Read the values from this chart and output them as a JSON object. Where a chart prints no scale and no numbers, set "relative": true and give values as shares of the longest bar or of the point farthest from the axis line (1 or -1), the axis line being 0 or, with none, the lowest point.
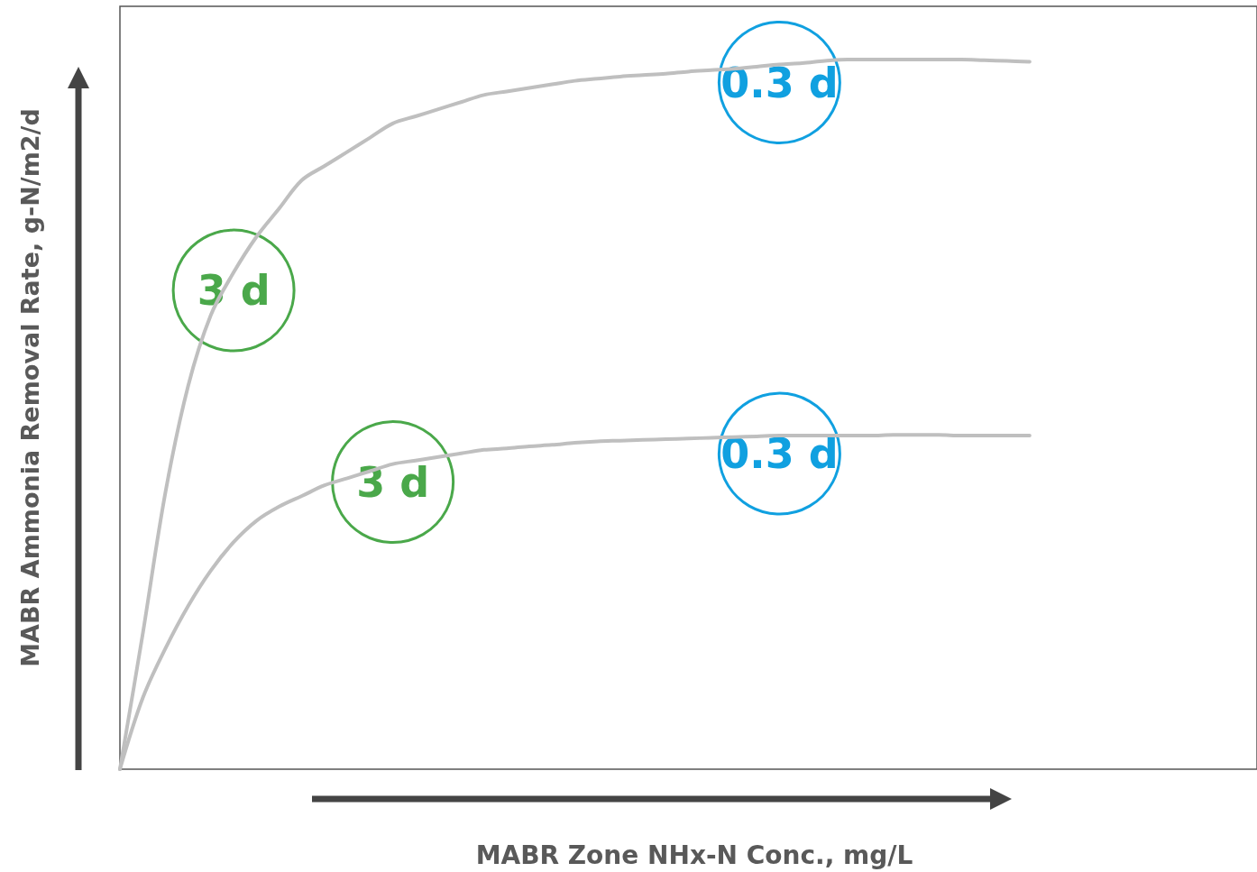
{
  "chart_data": {
    "type": "line",
    "relative": true,
    "xlabel": "MABR Zone NHx-N Conc., mg/L",
    "ylabel": "MABR Ammonia Removal Rate, g-N/m2/d",
    "marker": "none",
    "line_style": "solid",
    "categories": [
      null,
      null,
      null,
      null,
      null,
      null,
      null,
      null,
      null,
      null,
      null,
      null,
      null,
      null,
      null,
      null,
      null,
      null,
      null,
      null,
      null,
      null,
      null,
      null,
      null,
      null,
      null,
      null,
      null,
      null,
      null,
      null,
      null,
      null,
      null,
      null,
      null,
      null,
      null,
      null,
      null,
      null,
      null,
      null,
      null,
      null,
      null,
      null,
      null,
      null,
      null
    ],
    "series": [
      {
        "color": "#bfbfbf",
        "values": [
          0,
          0.19,
          0.39,
          0.54,
          0.64,
          0.7,
          0.75,
          0.79,
          0.83,
          0.85,
          0.87,
          0.89,
          0.91,
          0.92,
          0.93,
          0.94,
          0.95,
          0.955,
          0.96,
          0.965,
          0.97,
          0.973,
          0.976,
          0.978,
          0.98,
          0.983,
          0.985,
          0.987,
          0.99,
          0.993,
          0.995,
          0.998,
          1,
          1,
          1,
          1,
          1,
          1,
          0.999,
          0.998,
          0.997,
          null,
          null,
          null,
          null,
          null,
          null,
          null,
          null,
          null,
          null
        ]
      },
      {
        "color": "#bfbfbf",
        "values": [
          0,
          0.1,
          0.17,
          0.23,
          0.28,
          0.32,
          0.35,
          0.37,
          0.385,
          0.4,
          0.41,
          0.42,
          0.43,
          0.435,
          0.44,
          0.445,
          0.45,
          0.452,
          0.455,
          0.457,
          0.46,
          0.462,
          0.463,
          0.464,
          0.465,
          0.466,
          0.467,
          0.468,
          0.469,
          0.47,
          0.47,
          0.47,
          0.47,
          0.47,
          0.471,
          0.471,
          0.471,
          0.47,
          0.47,
          0.47,
          0.47,
          null,
          null,
          null,
          null,
          null,
          null,
          null,
          null,
          null,
          null
        ]
      }
    ],
    "annotations": [
      "3 d",
      "3 d",
      "0.3 d",
      "0.3 d"
    ]
  }
}
